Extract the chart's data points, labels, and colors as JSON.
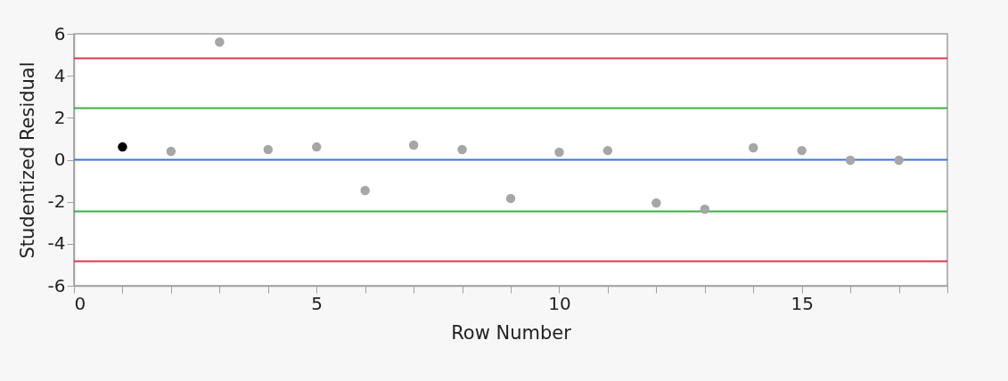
{
  "chart_data": {
    "type": "scatter",
    "xlabel": "Row Number",
    "ylabel": "Studentized Residual",
    "x": [
      1,
      2,
      3,
      4,
      5,
      6,
      7,
      8,
      9,
      10,
      11,
      12,
      13,
      14,
      15,
      16,
      17
    ],
    "values": [
      0.61,
      0.4,
      5.61,
      0.49,
      0.61,
      -1.46,
      0.7,
      0.49,
      -1.84,
      0.36,
      0.44,
      -2.06,
      -2.35,
      0.57,
      0.44,
      -0.02,
      -0.02
    ],
    "colors": [
      "#000000",
      "#a6a6a6",
      "#a6a6a6",
      "#a6a6a6",
      "#a6a6a6",
      "#a6a6a6",
      "#a6a6a6",
      "#a6a6a6",
      "#a6a6a6",
      "#a6a6a6",
      "#a6a6a6",
      "#a6a6a6",
      "#a6a6a6",
      "#a6a6a6",
      "#a6a6a6",
      "#a6a6a6",
      "#a6a6a6"
    ],
    "marker": "circle",
    "xlim": [
      0,
      18
    ],
    "xticks": [
      0,
      {
        "value": 1,
        "label": null
      },
      {
        "value": 2,
        "label": null
      },
      {
        "value": 3,
        "label": null
      },
      {
        "value": 4,
        "label": null
      },
      5,
      {
        "value": 6,
        "label": null
      },
      {
        "value": 7,
        "label": null
      },
      {
        "value": 8,
        "label": null
      },
      {
        "value": 9,
        "label": null
      },
      10,
      {
        "value": 11,
        "label": null
      },
      {
        "value": 12,
        "label": null
      },
      {
        "value": 13,
        "label": null
      },
      {
        "value": 14,
        "label": null
      },
      15,
      {
        "value": 16,
        "label": null
      },
      {
        "value": 17,
        "label": null
      },
      {
        "value": 18,
        "label": null
      }
    ],
    "ylim": [
      -6,
      6
    ],
    "yticks": [
      -6,
      -4,
      -2,
      0,
      2,
      4,
      6
    ],
    "ref_lines": [
      {
        "axis": "y",
        "value": 4.83,
        "color": "#e0364f"
      },
      {
        "axis": "y",
        "value": 2.46,
        "color": "#3cb043"
      },
      {
        "axis": "y",
        "value": 0,
        "color": "#3b73e0"
      },
      {
        "axis": "y",
        "value": -2.46,
        "color": "#3cb043"
      },
      {
        "axis": "y",
        "value": -4.83,
        "color": "#e0364f"
      }
    ],
    "grid": false
  }
}
